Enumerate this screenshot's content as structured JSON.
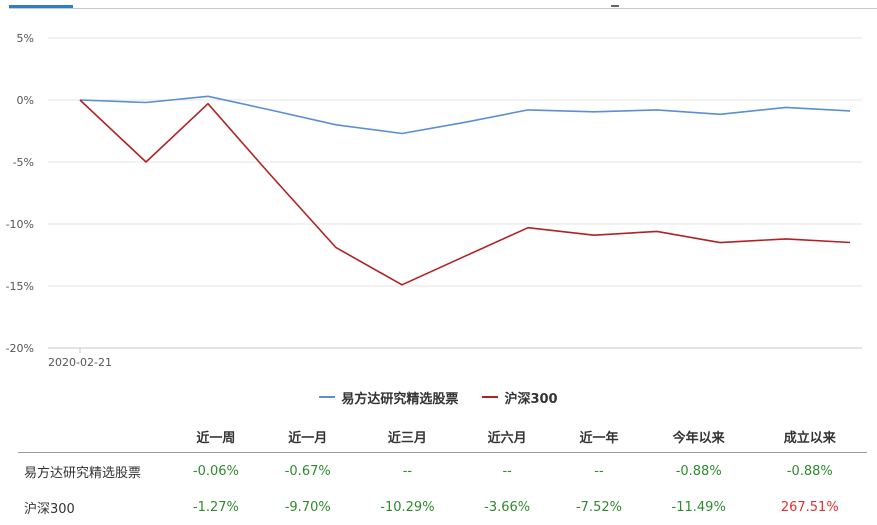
{
  "chart_data": {
    "type": "line",
    "x": [
      "2020-02-21",
      "",
      "",
      "",
      "",
      "",
      "",
      "",
      "",
      "",
      "",
      "",
      ""
    ],
    "x_tick_labels": [
      "2020-02-21"
    ],
    "ylim": [
      -20,
      5
    ],
    "y_ticks": [
      5,
      0,
      -5,
      -10,
      -15,
      -20
    ],
    "y_tick_labels": [
      "5%",
      "0%",
      "-5%",
      "-10%",
      "-15%",
      "-20%"
    ],
    "grid": true,
    "legend_position": "bottom",
    "series": [
      {
        "name": "易方达研究精选股票",
        "color": "#5b8fd2",
        "values": [
          0,
          -0.2,
          0.3,
          -0.8,
          -2.0,
          -2.7,
          -1.8,
          -0.8,
          -0.95,
          -0.8,
          -1.15,
          -0.6,
          -0.88
        ]
      },
      {
        "name": "沪深300",
        "color": "#b22222",
        "values": [
          0,
          -5.0,
          -0.3,
          -6.0,
          -11.9,
          -14.9,
          -12.6,
          -10.3,
          -10.9,
          -10.6,
          -11.5,
          -11.2,
          -11.49
        ]
      }
    ]
  },
  "table": {
    "headers": [
      "",
      "近一周",
      "近一月",
      "近三月",
      "近六月",
      "近一年",
      "今年以来",
      "成立以来"
    ],
    "rows": [
      {
        "name": "易方达研究精选股票",
        "cells": [
          {
            "text": "-0.06%",
            "tone": "neg"
          },
          {
            "text": "-0.67%",
            "tone": "neg"
          },
          {
            "text": "--",
            "tone": "flat"
          },
          {
            "text": "--",
            "tone": "flat"
          },
          {
            "text": "--",
            "tone": "flat"
          },
          {
            "text": "-0.88%",
            "tone": "neg"
          },
          {
            "text": "-0.88%",
            "tone": "neg"
          }
        ]
      },
      {
        "name": "沪深300",
        "cells": [
          {
            "text": "-1.27%",
            "tone": "neg"
          },
          {
            "text": "-9.70%",
            "tone": "neg"
          },
          {
            "text": "-10.29%",
            "tone": "neg"
          },
          {
            "text": "-3.66%",
            "tone": "neg"
          },
          {
            "text": "-7.52%",
            "tone": "neg"
          },
          {
            "text": "-11.49%",
            "tone": "neg"
          },
          {
            "text": "267.51%",
            "tone": "pos"
          }
        ]
      }
    ]
  }
}
